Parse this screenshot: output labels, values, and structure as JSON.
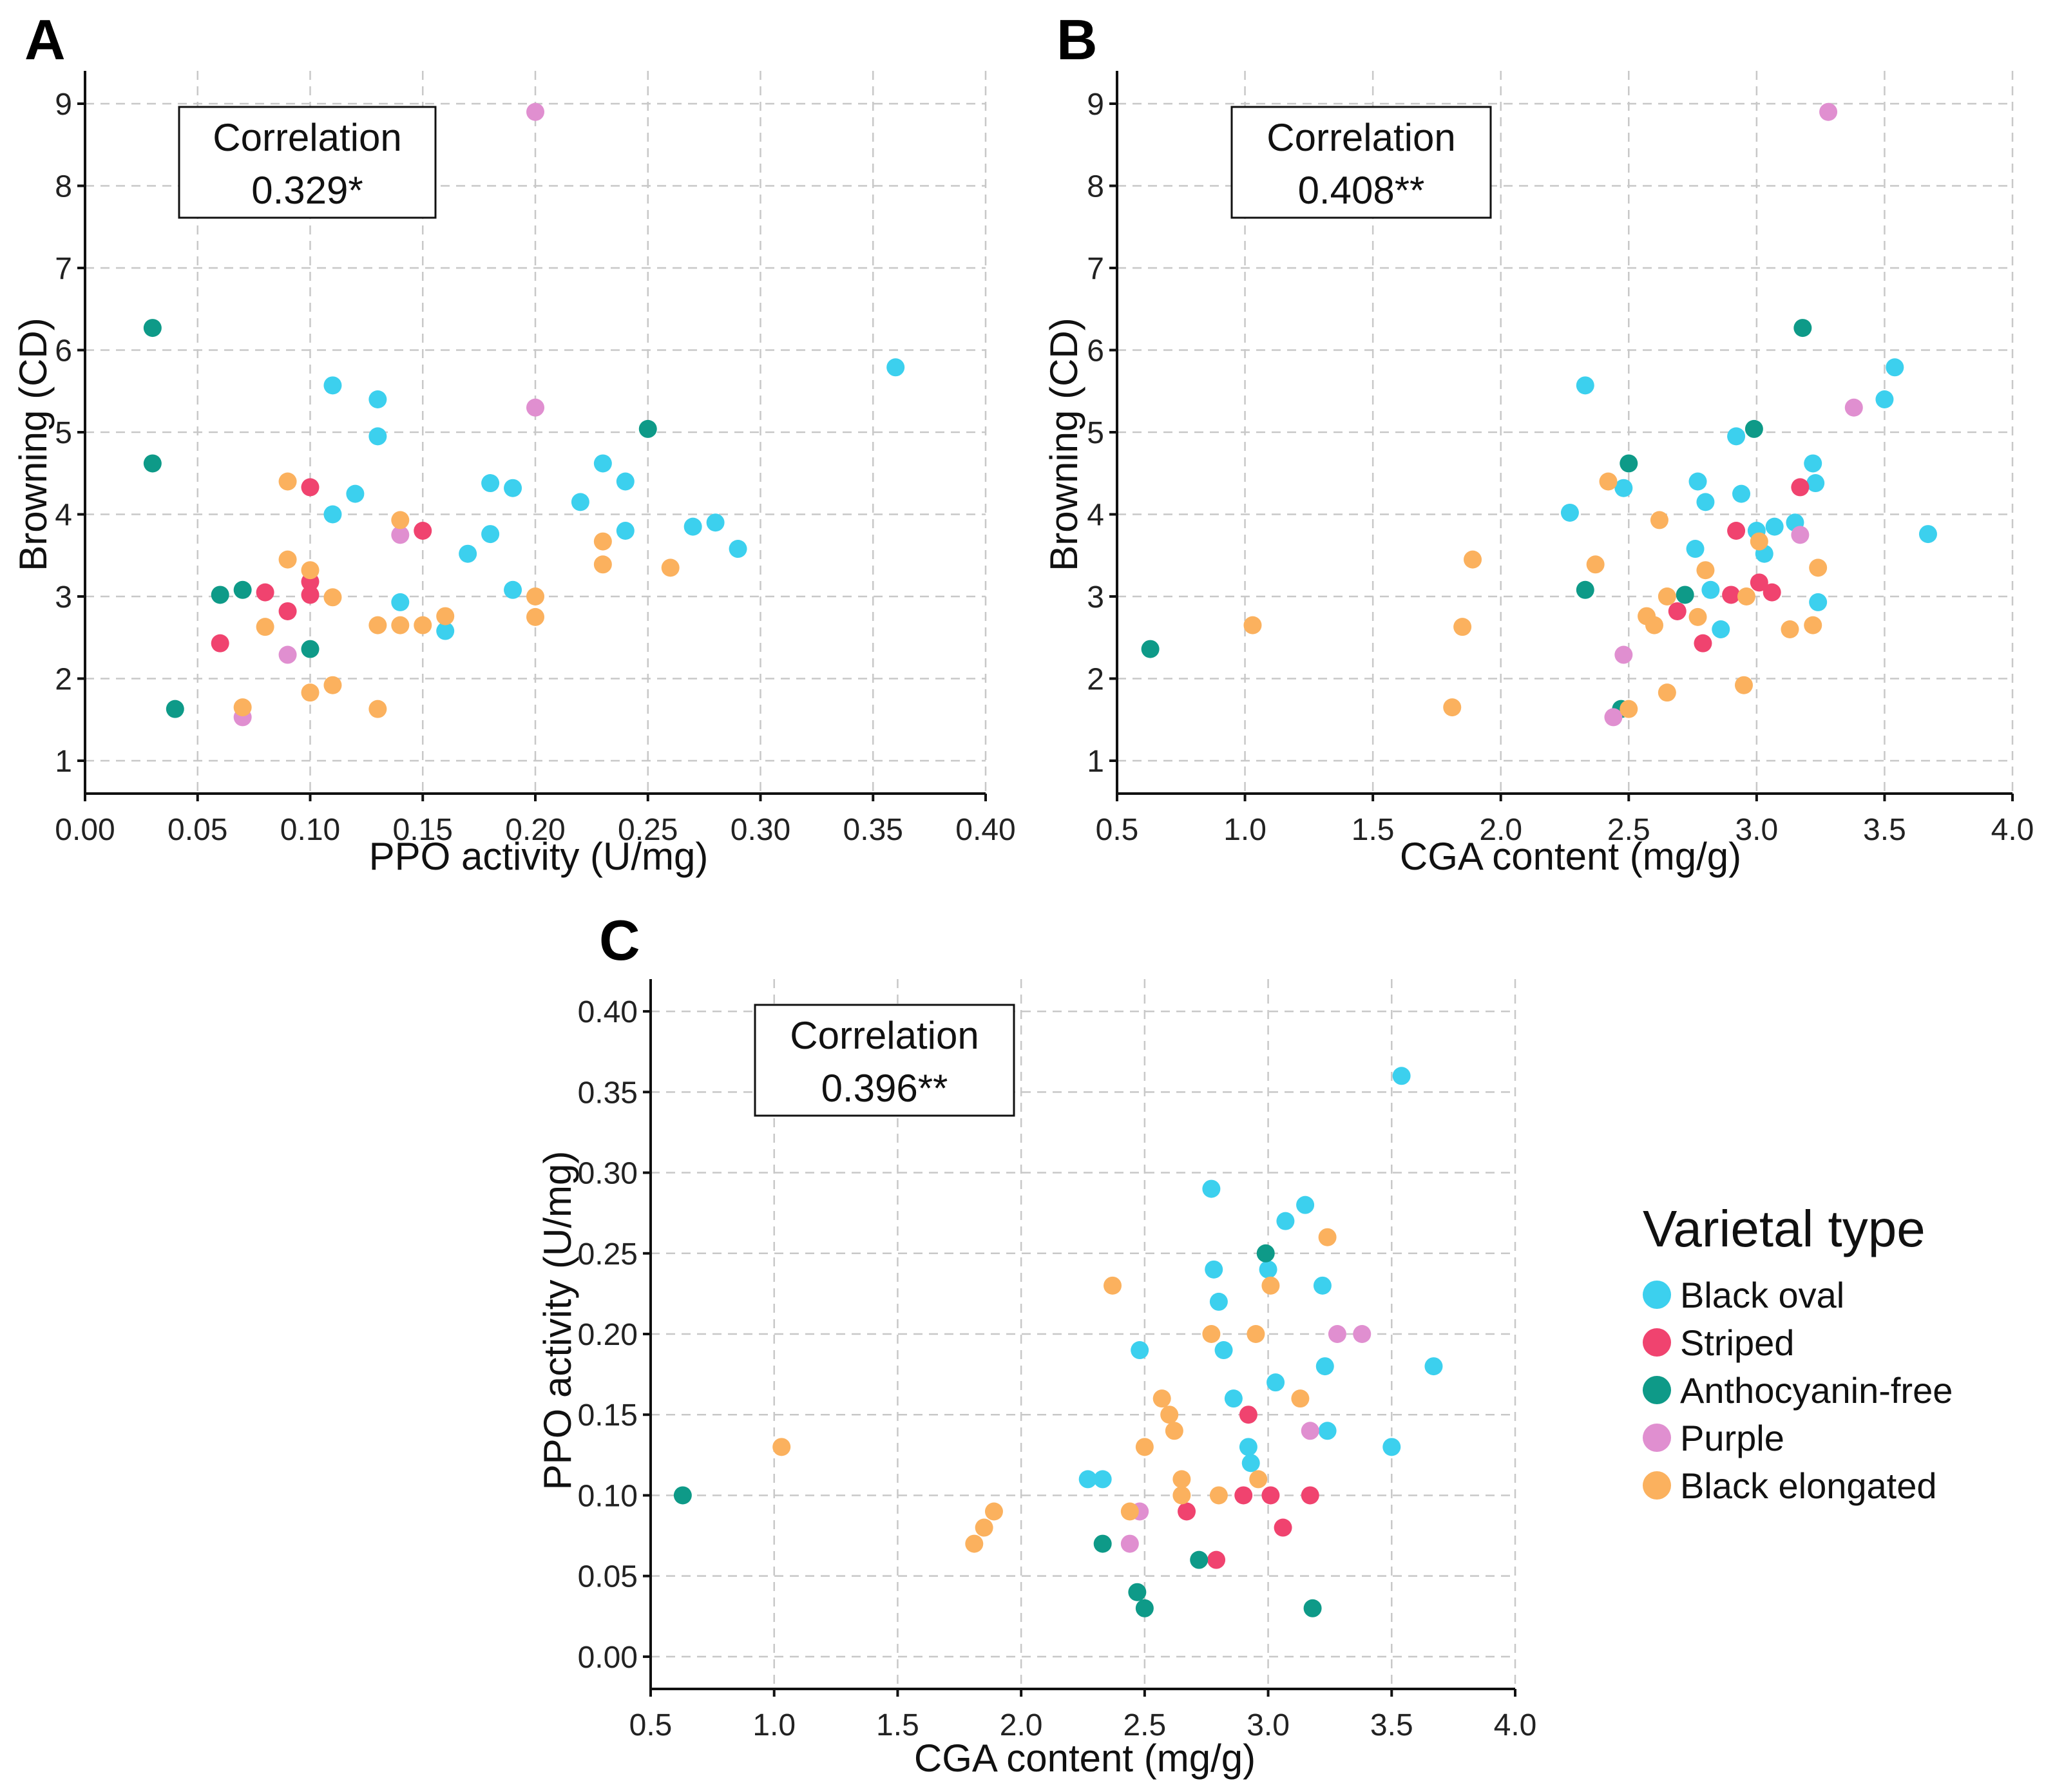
{
  "colors": {
    "Black oval": "#3cd0ee",
    "Striped": "#f0436f",
    "Anthocyanin-free": "#0e9a88",
    "Purple": "#e08fd0",
    "Black elongated": "#fbb15e"
  },
  "legend": {
    "title": "Varietal type",
    "items": [
      "Black oval",
      "Striped",
      "Anthocyanin-free",
      "Purple",
      "Black elongated"
    ]
  },
  "chart_data": [
    {
      "type": "scatter",
      "panel": "A",
      "xlabel": "PPO activity (U/mg)",
      "ylabel": "Browning (CD)",
      "xlim": [
        0,
        0.4
      ],
      "ylim": [
        0.6,
        9.4
      ],
      "xticks": [
        "0.00",
        "0.05",
        "0.10",
        "0.15",
        "0.20",
        "0.25",
        "0.30",
        "0.35",
        "0.40"
      ],
      "yticks": [
        "1",
        "2",
        "3",
        "4",
        "5",
        "6",
        "7",
        "8",
        "9"
      ],
      "correlation": {
        "label": "Correlation",
        "value": "0.329*"
      },
      "series": [
        {
          "name": "Black oval",
          "points": [
            [
              0.11,
              5.57
            ],
            [
              0.13,
              5.4
            ],
            [
              0.13,
              4.95
            ],
            [
              0.12,
              4.25
            ],
            [
              0.11,
              4.0
            ],
            [
              0.14,
              2.93
            ],
            [
              0.16,
              2.58
            ],
            [
              0.17,
              3.52
            ],
            [
              0.18,
              3.76
            ],
            [
              0.18,
              4.38
            ],
            [
              0.19,
              4.32
            ],
            [
              0.19,
              3.08
            ],
            [
              0.22,
              4.15
            ],
            [
              0.23,
              4.62
            ],
            [
              0.24,
              4.4
            ],
            [
              0.24,
              3.8
            ],
            [
              0.27,
              3.85
            ],
            [
              0.28,
              3.9
            ],
            [
              0.29,
              3.58
            ],
            [
              0.36,
              5.79
            ]
          ]
        },
        {
          "name": "Striped",
          "points": [
            [
              0.06,
              2.43
            ],
            [
              0.08,
              3.05
            ],
            [
              0.09,
              2.82
            ],
            [
              0.1,
              3.02
            ],
            [
              0.1,
              3.18
            ],
            [
              0.1,
              4.33
            ],
            [
              0.15,
              3.8
            ]
          ]
        },
        {
          "name": "Anthocyanin-free",
          "points": [
            [
              0.03,
              6.27
            ],
            [
              0.03,
              4.62
            ],
            [
              0.04,
              1.63
            ],
            [
              0.06,
              3.02
            ],
            [
              0.07,
              3.08
            ],
            [
              0.1,
              2.36
            ],
            [
              0.25,
              5.04
            ]
          ]
        },
        {
          "name": "Purple",
          "points": [
            [
              0.07,
              1.53
            ],
            [
              0.09,
              2.29
            ],
            [
              0.14,
              3.75
            ],
            [
              0.2,
              8.9
            ],
            [
              0.2,
              5.3
            ]
          ]
        },
        {
          "name": "Black elongated",
          "points": [
            [
              0.07,
              1.65
            ],
            [
              0.08,
              2.63
            ],
            [
              0.09,
              4.4
            ],
            [
              0.09,
              3.45
            ],
            [
              0.1,
              3.32
            ],
            [
              0.1,
              1.83
            ],
            [
              0.11,
              2.99
            ],
            [
              0.11,
              1.92
            ],
            [
              0.13,
              2.65
            ],
            [
              0.13,
              1.63
            ],
            [
              0.14,
              3.93
            ],
            [
              0.14,
              2.65
            ],
            [
              0.15,
              2.65
            ],
            [
              0.16,
              2.76
            ],
            [
              0.2,
              3.0
            ],
            [
              0.2,
              2.75
            ],
            [
              0.23,
              3.67
            ],
            [
              0.23,
              3.39
            ],
            [
              0.26,
              3.35
            ]
          ]
        }
      ]
    },
    {
      "type": "scatter",
      "panel": "B",
      "xlabel": "CGA content (mg/g)",
      "ylabel": "Browning (CD)",
      "xlim": [
        0.5,
        4.0
      ],
      "ylim": [
        0.6,
        9.4
      ],
      "xticks": [
        "0.5",
        "1.0",
        "1.5",
        "2.0",
        "2.5",
        "3.0",
        "3.5",
        "4.0"
      ],
      "yticks": [
        "1",
        "2",
        "3",
        "4",
        "5",
        "6",
        "7",
        "8",
        "9"
      ],
      "correlation": {
        "label": "Correlation",
        "value": "0.408**"
      },
      "series": [
        {
          "name": "Black oval",
          "points": [
            [
              2.33,
              5.57
            ],
            [
              2.27,
              4.02
            ],
            [
              2.48,
              4.32
            ],
            [
              2.77,
              4.4
            ],
            [
              2.8,
              4.15
            ],
            [
              2.76,
              3.58
            ],
            [
              2.82,
              3.08
            ],
            [
              2.86,
              2.6
            ],
            [
              2.92,
              4.95
            ],
            [
              2.94,
              4.25
            ],
            [
              3.0,
              3.8
            ],
            [
              3.03,
              3.52
            ],
            [
              3.07,
              3.85
            ],
            [
              3.15,
              3.9
            ],
            [
              3.22,
              4.62
            ],
            [
              3.23,
              4.38
            ],
            [
              3.24,
              2.93
            ],
            [
              3.5,
              5.4
            ],
            [
              3.54,
              5.79
            ],
            [
              3.67,
              3.76
            ]
          ]
        },
        {
          "name": "Striped",
          "points": [
            [
              2.92,
              3.8
            ],
            [
              2.79,
              2.43
            ],
            [
              2.9,
              3.02
            ],
            [
              3.01,
              3.17
            ],
            [
              3.06,
              3.05
            ],
            [
              2.69,
              2.82
            ],
            [
              3.17,
              4.33
            ]
          ]
        },
        {
          "name": "Anthocyanin-free",
          "points": [
            [
              0.63,
              2.36
            ],
            [
              2.33,
              3.08
            ],
            [
              2.47,
              1.63
            ],
            [
              2.5,
              4.62
            ],
            [
              2.72,
              3.02
            ],
            [
              2.99,
              5.04
            ],
            [
              3.18,
              6.27
            ]
          ]
        },
        {
          "name": "Purple",
          "points": [
            [
              2.44,
              1.53
            ],
            [
              2.48,
              2.29
            ],
            [
              3.17,
              3.75
            ],
            [
              3.38,
              5.3
            ],
            [
              3.28,
              8.9
            ]
          ]
        },
        {
          "name": "Black elongated",
          "points": [
            [
              1.03,
              2.65
            ],
            [
              1.81,
              1.65
            ],
            [
              1.85,
              2.63
            ],
            [
              1.89,
              3.45
            ],
            [
              2.37,
              3.39
            ],
            [
              2.42,
              4.4
            ],
            [
              2.5,
              1.63
            ],
            [
              2.57,
              2.76
            ],
            [
              2.6,
              2.65
            ],
            [
              2.62,
              3.93
            ],
            [
              2.65,
              3.0
            ],
            [
              2.65,
              1.83
            ],
            [
              2.77,
              2.75
            ],
            [
              2.8,
              3.32
            ],
            [
              2.95,
              1.92
            ],
            [
              2.96,
              3.0
            ],
            [
              3.01,
              3.67
            ],
            [
              3.13,
              2.6
            ],
            [
              3.22,
              2.65
            ],
            [
              3.24,
              3.35
            ]
          ]
        }
      ]
    },
    {
      "type": "scatter",
      "panel": "C",
      "xlabel": "CGA content (mg/g)",
      "ylabel": "PPO activity (U/mg)",
      "xlim": [
        0.5,
        4.0
      ],
      "ylim": [
        -0.02,
        0.42
      ],
      "xticks": [
        "0.5",
        "1.0",
        "1.5",
        "2.0",
        "2.5",
        "3.0",
        "3.5",
        "4.0"
      ],
      "yticks": [
        "0.00",
        "0.05",
        "0.10",
        "0.15",
        "0.20",
        "0.25",
        "0.30",
        "0.35",
        "0.40"
      ],
      "correlation": {
        "label": "Correlation",
        "value": "0.396**"
      },
      "series": [
        {
          "name": "Black oval",
          "points": [
            [
              2.27,
              0.11
            ],
            [
              2.33,
              0.11
            ],
            [
              2.48,
              0.19
            ],
            [
              2.77,
              0.29
            ],
            [
              2.78,
              0.24
            ],
            [
              2.8,
              0.22
            ],
            [
              2.82,
              0.19
            ],
            [
              2.86,
              0.16
            ],
            [
              2.92,
              0.13
            ],
            [
              2.93,
              0.12
            ],
            [
              3.0,
              0.24
            ],
            [
              3.03,
              0.17
            ],
            [
              3.07,
              0.27
            ],
            [
              3.15,
              0.28
            ],
            [
              3.22,
              0.23
            ],
            [
              3.23,
              0.18
            ],
            [
              3.24,
              0.14
            ],
            [
              3.5,
              0.13
            ],
            [
              3.54,
              0.36
            ],
            [
              3.67,
              0.18
            ]
          ]
        },
        {
          "name": "Striped",
          "points": [
            [
              2.67,
              0.09
            ],
            [
              2.79,
              0.06
            ],
            [
              2.9,
              0.1
            ],
            [
              2.92,
              0.15
            ],
            [
              3.01,
              0.1
            ],
            [
              3.06,
              0.08
            ],
            [
              3.17,
              0.1
            ]
          ]
        },
        {
          "name": "Anthocyanin-free",
          "points": [
            [
              0.63,
              0.1
            ],
            [
              2.33,
              0.07
            ],
            [
              2.47,
              0.04
            ],
            [
              2.5,
              0.03
            ],
            [
              2.72,
              0.06
            ],
            [
              2.99,
              0.25
            ],
            [
              3.18,
              0.03
            ]
          ]
        },
        {
          "name": "Purple",
          "points": [
            [
              2.44,
              0.07
            ],
            [
              2.48,
              0.09
            ],
            [
              3.17,
              0.14
            ],
            [
              3.28,
              0.2
            ],
            [
              3.38,
              0.2
            ]
          ]
        },
        {
          "name": "Black elongated",
          "points": [
            [
              1.03,
              0.13
            ],
            [
              1.81,
              0.07
            ],
            [
              1.85,
              0.08
            ],
            [
              1.89,
              0.09
            ],
            [
              2.37,
              0.23
            ],
            [
              2.44,
              0.09
            ],
            [
              2.5,
              0.13
            ],
            [
              2.57,
              0.16
            ],
            [
              2.6,
              0.15
            ],
            [
              2.62,
              0.14
            ],
            [
              2.65,
              0.11
            ],
            [
              2.65,
              0.1
            ],
            [
              2.77,
              0.2
            ],
            [
              2.8,
              0.1
            ],
            [
              2.95,
              0.2
            ],
            [
              2.96,
              0.11
            ],
            [
              3.01,
              0.23
            ],
            [
              3.13,
              0.16
            ],
            [
              3.24,
              0.26
            ]
          ]
        }
      ]
    }
  ]
}
